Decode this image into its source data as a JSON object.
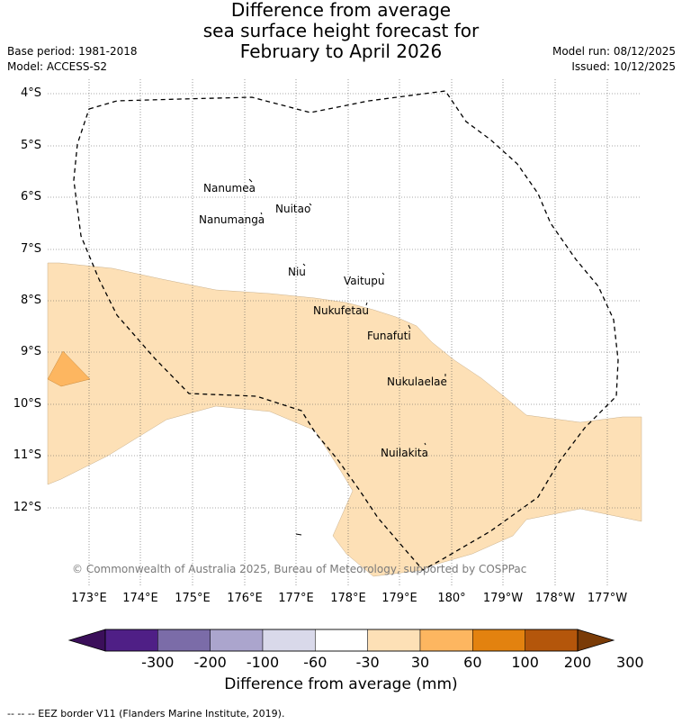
{
  "title_lines": [
    "Difference from average",
    "sea surface height forecast for",
    "February to April 2026"
  ],
  "base_period": "Base period: 1981-2018",
  "model": "Model: ACCESS-S2",
  "model_run": "Model run: 08/12/2025",
  "issued": "Issued: 10/12/2025",
  "lat_labels": [
    "4°S",
    "5°S",
    "6°S",
    "7°S",
    "8°S",
    "9°S",
    "10°S",
    "11°S",
    "12°S"
  ],
  "lon_labels": [
    "173°E",
    "174°E",
    "175°E",
    "176°E",
    "177°E",
    "178°E",
    "179°E",
    "180°",
    "179°W",
    "178°W",
    "177°W"
  ],
  "places": [
    "Nanumea",
    "Nuitao",
    "Nanumanga",
    "Niu",
    "Vaitupu",
    "Nukufetau",
    "Funafuti",
    "Nukulaelae",
    "Nuilakita"
  ],
  "copyright": "© Commonwealth of Australia 2025, Bureau of Meteorology, supported by COSPPac",
  "colorbar": {
    "ticks": [
      "-300",
      "-200",
      "-100",
      "-60",
      "-30",
      "30",
      "60",
      "100",
      "200",
      "300"
    ],
    "colors": [
      "#3b0f5a",
      "#4f1f86",
      "#7b6ca8",
      "#aba5cd",
      "#d9d9ea",
      "#ffffff",
      "#fde0b6",
      "#fdb660",
      "#e3820f",
      "#b4560b",
      "#7a3b07"
    ],
    "title": "Difference from average (mm)"
  },
  "footnote": "--  --  -- EEZ border V11 (Flanders Marine Institute, 2019)."
}
